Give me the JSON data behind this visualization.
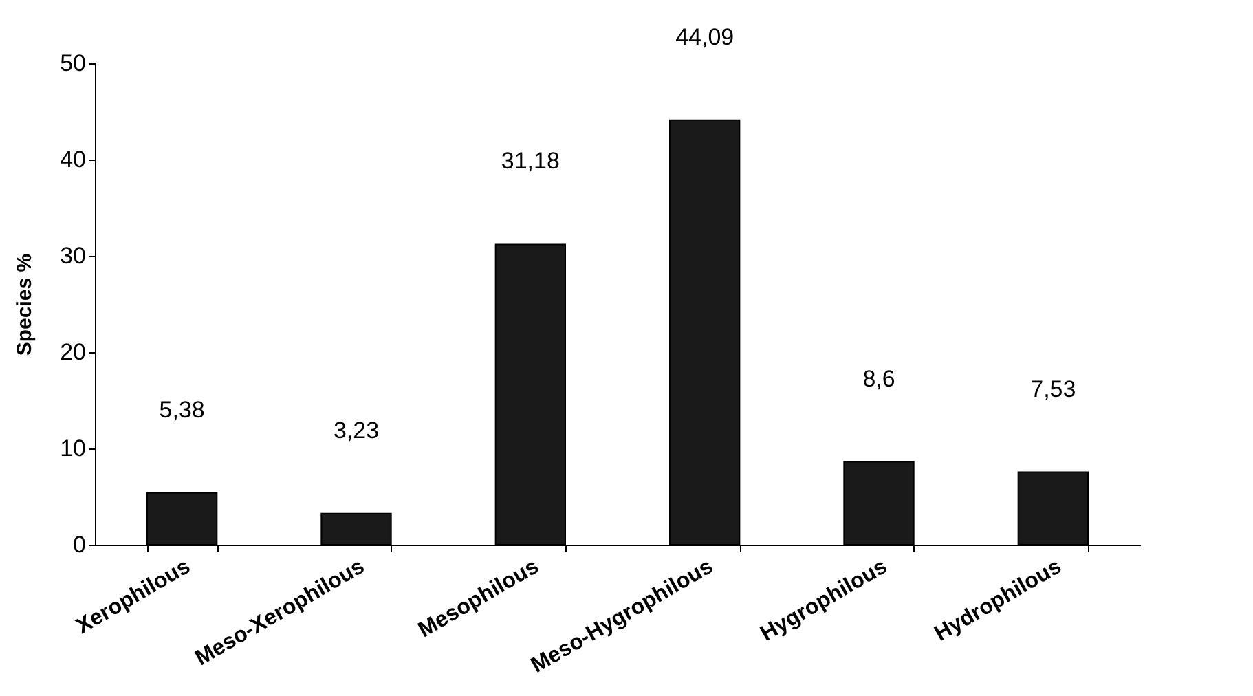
{
  "chart_data": {
    "type": "bar",
    "ylabel": "Species %",
    "categories": [
      "Xerophilous",
      "Meso-Xerophilous",
      "Mesophilous",
      "Meso-Hygrophilous",
      "Hygrophilous",
      "Hydrophilous"
    ],
    "values": [
      5.38,
      3.23,
      31.18,
      44.09,
      8.6,
      7.53
    ],
    "value_labels": [
      "5,38",
      "3,23",
      "31,18",
      "44,09",
      "8,6",
      "7,53"
    ],
    "color": "#1a1a1a",
    "ylim": [
      0,
      50
    ],
    "yticks": [
      0,
      10,
      20,
      30,
      40,
      50
    ],
    "grid": false
  }
}
